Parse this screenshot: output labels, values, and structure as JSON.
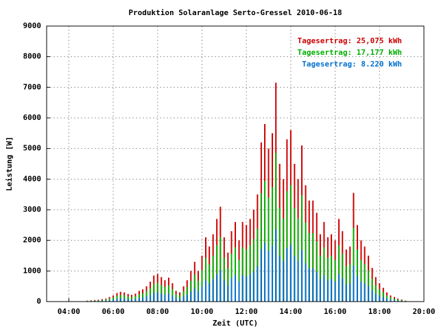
{
  "chart_data": {
    "type": "bar",
    "title": "Produktion Solaranlage Serto-Gressel 2010-06-18",
    "x_label": "Zeit (UTC)",
    "y_label": "Leistung [W]",
    "x": [
      4.83,
      5,
      5.17,
      5.33,
      5.5,
      5.67,
      5.83,
      6,
      6.17,
      6.33,
      6.5,
      6.67,
      6.83,
      7,
      7.17,
      7.33,
      7.5,
      7.67,
      7.83,
      8,
      8.17,
      8.33,
      8.5,
      8.67,
      8.83,
      9,
      9.17,
      9.33,
      9.5,
      9.67,
      9.83,
      10,
      10.17,
      10.33,
      10.5,
      10.67,
      10.83,
      11,
      11.17,
      11.33,
      11.5,
      11.67,
      11.83,
      12,
      12.17,
      12.33,
      12.5,
      12.67,
      12.83,
      13,
      13.17,
      13.33,
      13.5,
      13.67,
      13.83,
      14,
      14.17,
      14.33,
      14.5,
      14.67,
      14.83,
      15,
      15.17,
      15.33,
      15.5,
      15.67,
      15.83,
      16,
      16.17,
      16.33,
      16.5,
      16.67,
      16.83,
      17,
      17.17,
      17.33,
      17.5,
      17.67,
      17.83,
      18,
      18.17,
      18.33,
      18.5,
      18.67,
      18.83,
      19,
      19.17
    ],
    "series": [
      {
        "name": "Tagesertrag: 25,075 kWh",
        "color": "#cc0000",
        "values": [
          30,
          40,
          50,
          60,
          80,
          100,
          150,
          200,
          280,
          320,
          300,
          250,
          220,
          260,
          350,
          400,
          500,
          650,
          850,
          900,
          800,
          700,
          780,
          600,
          350,
          300,
          500,
          700,
          1000,
          1300,
          1000,
          1500,
          2100,
          1800,
          2200,
          2700,
          3100,
          2100,
          1600,
          2300,
          2600,
          2000,
          2600,
          2500,
          2700,
          3000,
          3500,
          5200,
          5800,
          5000,
          5500,
          7150,
          4500,
          4000,
          5300,
          5600,
          4500,
          4000,
          5100,
          3800,
          3300,
          3300,
          2900,
          2200,
          2600,
          2100,
          2200,
          2000,
          2700,
          2300,
          1700,
          1800,
          3550,
          2500,
          2000,
          1800,
          1500,
          1100,
          800,
          600,
          450,
          300,
          200,
          150,
          100,
          70,
          30
        ]
      },
      {
        "name": "Tagesertrag: 17,177 kWh",
        "color": "#00b000",
        "values": [
          20,
          30,
          30,
          40,
          50,
          70,
          100,
          140,
          190,
          220,
          200,
          170,
          150,
          180,
          240,
          270,
          340,
          440,
          580,
          610,
          540,
          480,
          530,
          410,
          240,
          200,
          340,
          480,
          680,
          880,
          680,
          1020,
          1430,
          1220,
          1500,
          1840,
          2110,
          1430,
          1090,
          1560,
          1770,
          1360,
          1770,
          1700,
          1840,
          2040,
          2380,
          3540,
          3940,
          3400,
          3740,
          4860,
          3060,
          2720,
          3600,
          3810,
          3060,
          2720,
          3470,
          2580,
          2240,
          2240,
          1970,
          1500,
          1770,
          1430,
          1500,
          1360,
          1840,
          1560,
          1160,
          1220,
          2410,
          1700,
          1360,
          1220,
          1020,
          750,
          540,
          410,
          310,
          200,
          140,
          100,
          70,
          50,
          20
        ]
      },
      {
        "name": "Tagesertrag: 8.220 kWh",
        "color": "#0070d0",
        "values": [
          10,
          10,
          20,
          20,
          30,
          30,
          50,
          70,
          90,
          110,
          100,
          80,
          70,
          90,
          120,
          130,
          170,
          210,
          280,
          300,
          260,
          230,
          260,
          200,
          120,
          100,
          170,
          230,
          330,
          430,
          330,
          500,
          690,
          590,
          730,
          890,
          1020,
          690,
          530,
          760,
          860,
          660,
          860,
          830,
          890,
          990,
          1160,
          1720,
          1910,
          1650,
          1820,
          2360,
          1490,
          1320,
          1750,
          1850,
          1490,
          1320,
          1680,
          1250,
          1090,
          1090,
          960,
          730,
          860,
          690,
          730,
          660,
          890,
          760,
          560,
          590,
          1170,
          830,
          660,
          590,
          500,
          360,
          260,
          200,
          150,
          100,
          70,
          50,
          30,
          20,
          10
        ]
      }
    ],
    "xlim": [
      3,
      20
    ],
    "xticks": [
      {
        "value": 4,
        "label": "04:00"
      },
      {
        "value": 6,
        "label": "06:00"
      },
      {
        "value": 8,
        "label": "08:00"
      },
      {
        "value": 10,
        "label": "10:00"
      },
      {
        "value": 12,
        "label": "12:00"
      },
      {
        "value": 14,
        "label": "14:00"
      },
      {
        "value": 16,
        "label": "16:00"
      },
      {
        "value": 18,
        "label": "18:00"
      },
      {
        "value": 20,
        "label": "20:00"
      }
    ],
    "ylim": [
      0,
      9000
    ],
    "yticks": [
      0,
      1000,
      2000,
      3000,
      4000,
      5000,
      6000,
      7000,
      8000,
      9000
    ],
    "grid": true,
    "legend": "upper right"
  }
}
